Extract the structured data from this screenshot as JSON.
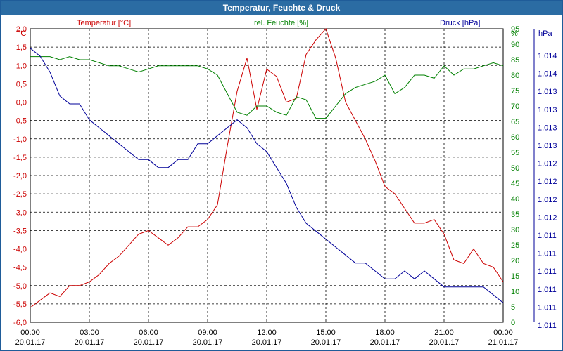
{
  "window": {
    "title": "Temperatur, Feuchte & Druck"
  },
  "chart_data": {
    "type": "line",
    "grid": true,
    "legend": "top",
    "axes": {
      "temperature": {
        "label": "Temperatur [°C]",
        "unit": "°C",
        "color": "#cc0000",
        "min": -6.0,
        "max": 2.0,
        "ticks": [
          "2,0",
          "1,5",
          "1,0",
          "0,5",
          "0,0",
          "-0,5",
          "-1,0",
          "-1,5",
          "-2,0",
          "-2,5",
          "-3,0",
          "-3,5",
          "-4,0",
          "-4,5",
          "-5,0",
          "-5,5",
          "-6,0"
        ]
      },
      "humidity": {
        "label": "rel. Feuchte [%]",
        "unit": "%",
        "color": "#008000",
        "min": 0,
        "max": 95,
        "ticks": [
          "95",
          "90",
          "85",
          "80",
          "75",
          "70",
          "65",
          "60",
          "55",
          "50",
          "45",
          "40",
          "35",
          "30",
          "25",
          "20",
          "15",
          "10",
          "5",
          "0"
        ]
      },
      "pressure": {
        "label": "Druck [hPa]",
        "unit": "hPa",
        "color": "#000099",
        "ticks": [
          "1.014",
          "1.014",
          "1.013",
          "1.013",
          "1.013",
          "1.013",
          "1.012",
          "1.012",
          "1.012",
          "1.012",
          "1.011",
          "1.011",
          "1.011",
          "1.011",
          "1.011",
          "1.011"
        ]
      },
      "x": {
        "ticks": [
          {
            "time": "00:00",
            "date": "20.01.17"
          },
          {
            "time": "03:00",
            "date": "20.01.17"
          },
          {
            "time": "06:00",
            "date": "20.01.17"
          },
          {
            "time": "09:00",
            "date": "20.01.17"
          },
          {
            "time": "12:00",
            "date": "20.01.17"
          },
          {
            "time": "15:00",
            "date": "20.01.17"
          },
          {
            "time": "18:00",
            "date": "20.01.17"
          },
          {
            "time": "21:00",
            "date": "20.01.17"
          },
          {
            "time": "00:00",
            "date": "21.01.17"
          }
        ]
      }
    },
    "x_hours": [
      0,
      0.5,
      1,
      1.5,
      2,
      2.5,
      3,
      3.5,
      4,
      4.5,
      5,
      5.5,
      6,
      6.5,
      7,
      7.5,
      8,
      8.5,
      9,
      9.5,
      10,
      10.5,
      11,
      11.5,
      12,
      12.5,
      13,
      13.5,
      14,
      14.5,
      15,
      15.5,
      16,
      16.5,
      17,
      17.5,
      18,
      18.5,
      19,
      19.5,
      20,
      20.5,
      21,
      21.5,
      22,
      22.5,
      23,
      23.5,
      24
    ],
    "series": [
      {
        "name": "Temperatur [°C]",
        "axis": "temperature",
        "color": "#cc0000",
        "values": [
          -5.6,
          -5.4,
          -5.2,
          -5.3,
          -5.0,
          -5.0,
          -4.9,
          -4.7,
          -4.4,
          -4.2,
          -3.9,
          -3.6,
          -3.5,
          -3.7,
          -3.9,
          -3.7,
          -3.4,
          -3.4,
          -3.2,
          -2.8,
          -1.2,
          0.3,
          1.2,
          -0.2,
          0.9,
          0.7,
          0.0,
          0.1,
          1.3,
          1.7,
          2.0,
          1.2,
          0.0,
          -0.5,
          -1.0,
          -1.6,
          -2.3,
          -2.5,
          -2.9,
          -3.3,
          -3.3,
          -3.2,
          -3.6,
          -4.3,
          -4.4,
          -4.0,
          -4.4,
          -4.5,
          -4.9
        ]
      },
      {
        "name": "rel. Feuchte [%]",
        "axis": "humidity",
        "color": "#008000",
        "values": [
          86,
          86,
          86,
          85,
          86,
          85,
          85,
          84,
          83,
          83,
          82,
          81,
          82,
          83,
          83,
          83,
          83,
          83,
          82,
          80,
          74,
          68,
          67,
          70,
          70,
          68,
          67,
          73,
          72,
          66,
          66,
          70,
          74,
          76,
          77,
          78,
          80,
          74,
          76,
          80,
          80,
          79,
          83,
          80,
          82,
          82,
          83,
          84,
          83
        ]
      },
      {
        "name": "Druck [hPa]",
        "axis": "pressure",
        "color": "#000099",
        "values": [
          1.0141,
          1.014,
          1.0138,
          1.0135,
          1.0134,
          1.0134,
          1.0132,
          1.0131,
          1.013,
          1.0129,
          1.0128,
          1.0127,
          1.0127,
          1.0126,
          1.0126,
          1.0127,
          1.0127,
          1.0129,
          1.0129,
          1.013,
          1.0131,
          1.0132,
          1.0131,
          1.0129,
          1.0128,
          1.0126,
          1.0124,
          1.0121,
          1.0119,
          1.0118,
          1.0117,
          1.0116,
          1.0115,
          1.0114,
          1.0114,
          1.0113,
          1.0112,
          1.0112,
          1.0113,
          1.0112,
          1.0113,
          1.0112,
          1.0111,
          1.0111,
          1.0111,
          1.0111,
          1.0111,
          1.011,
          1.0109
        ]
      }
    ]
  }
}
